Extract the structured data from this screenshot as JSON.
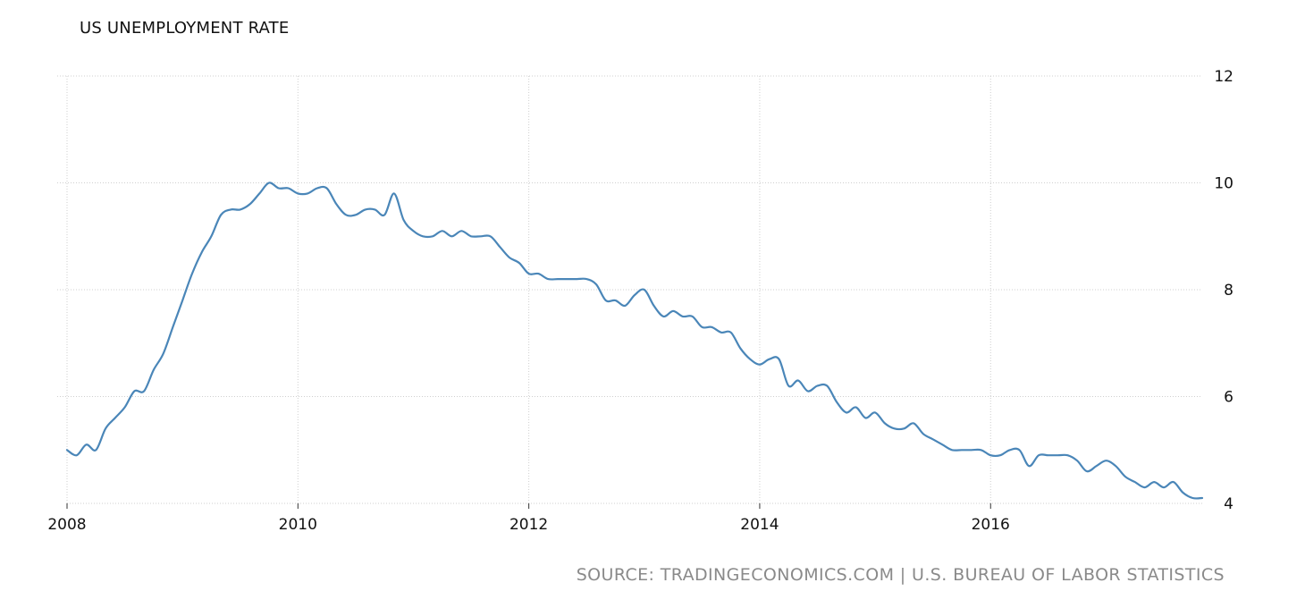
{
  "source": "SOURCE: TRADINGECONOMICS.COM | U.S. BUREAU OF LABOR STATISTICS",
  "colors": {
    "line": "#4a86b8",
    "grid": "#cfcfcf",
    "source_text": "#8a8a8a"
  },
  "chart_data": {
    "type": "line",
    "title": "US UNEMPLOYMENT RATE",
    "xlabel": "",
    "ylabel": "",
    "xlim": [
      2008.0,
      2017.833
    ],
    "ylim": [
      4,
      12
    ],
    "x_ticks": [
      2008,
      2010,
      2012,
      2014,
      2016
    ],
    "x_tick_labels": [
      "2008",
      "2010",
      "2012",
      "2014",
      "2016"
    ],
    "y_ticks": [
      4,
      6,
      8,
      10,
      12
    ],
    "y_tick_labels": [
      "4",
      "6",
      "8",
      "10",
      "12"
    ],
    "y_axis_side": "right",
    "grid": true,
    "legend": "none",
    "series": [
      {
        "x": [
          "2008-01",
          "2008-02",
          "2008-03",
          "2008-04",
          "2008-05",
          "2008-06",
          "2008-07",
          "2008-08",
          "2008-09",
          "2008-10",
          "2008-11",
          "2008-12",
          "2009-01",
          "2009-02",
          "2009-03",
          "2009-04",
          "2009-05",
          "2009-06",
          "2009-07",
          "2009-08",
          "2009-09",
          "2009-10",
          "2009-11",
          "2009-12",
          "2010-01",
          "2010-02",
          "2010-03",
          "2010-04",
          "2010-05",
          "2010-06",
          "2010-07",
          "2010-08",
          "2010-09",
          "2010-10",
          "2010-11",
          "2010-12",
          "2011-01",
          "2011-02",
          "2011-03",
          "2011-04",
          "2011-05",
          "2011-06",
          "2011-07",
          "2011-08",
          "2011-09",
          "2011-10",
          "2011-11",
          "2011-12",
          "2012-01",
          "2012-02",
          "2012-03",
          "2012-04",
          "2012-05",
          "2012-06",
          "2012-07",
          "2012-08",
          "2012-09",
          "2012-10",
          "2012-11",
          "2012-12",
          "2013-01",
          "2013-02",
          "2013-03",
          "2013-04",
          "2013-05",
          "2013-06",
          "2013-07",
          "2013-08",
          "2013-09",
          "2013-10",
          "2013-11",
          "2013-12",
          "2014-01",
          "2014-02",
          "2014-03",
          "2014-04",
          "2014-05",
          "2014-06",
          "2014-07",
          "2014-08",
          "2014-09",
          "2014-10",
          "2014-11",
          "2014-12",
          "2015-01",
          "2015-02",
          "2015-03",
          "2015-04",
          "2015-05",
          "2015-06",
          "2015-07",
          "2015-08",
          "2015-09",
          "2015-10",
          "2015-11",
          "2015-12",
          "2016-01",
          "2016-02",
          "2016-03",
          "2016-04",
          "2016-05",
          "2016-06",
          "2016-07",
          "2016-08",
          "2016-09",
          "2016-10",
          "2016-11",
          "2016-12",
          "2017-01",
          "2017-02",
          "2017-03",
          "2017-04",
          "2017-05",
          "2017-06",
          "2017-07",
          "2017-08",
          "2017-09",
          "2017-10",
          "2017-11"
        ],
        "values": [
          5.0,
          4.9,
          5.1,
          5.0,
          5.4,
          5.6,
          5.8,
          6.1,
          6.1,
          6.5,
          6.8,
          7.3,
          7.8,
          8.3,
          8.7,
          9.0,
          9.4,
          9.5,
          9.5,
          9.6,
          9.8,
          10.0,
          9.9,
          9.9,
          9.8,
          9.8,
          9.9,
          9.9,
          9.6,
          9.4,
          9.4,
          9.5,
          9.5,
          9.4,
          9.8,
          9.3,
          9.1,
          9.0,
          9.0,
          9.1,
          9.0,
          9.1,
          9.0,
          9.0,
          9.0,
          8.8,
          8.6,
          8.5,
          8.3,
          8.3,
          8.2,
          8.2,
          8.2,
          8.2,
          8.2,
          8.1,
          7.8,
          7.8,
          7.7,
          7.9,
          8.0,
          7.7,
          7.5,
          7.6,
          7.5,
          7.5,
          7.3,
          7.3,
          7.2,
          7.2,
          6.9,
          6.7,
          6.6,
          6.7,
          6.7,
          6.2,
          6.3,
          6.1,
          6.2,
          6.2,
          5.9,
          5.7,
          5.8,
          5.6,
          5.7,
          5.5,
          5.4,
          5.4,
          5.5,
          5.3,
          5.2,
          5.1,
          5.0,
          5.0,
          5.0,
          5.0,
          4.9,
          4.9,
          5.0,
          5.0,
          4.7,
          4.9,
          4.9,
          4.9,
          4.9,
          4.8,
          4.6,
          4.7,
          4.8,
          4.7,
          4.5,
          4.4,
          4.3,
          4.4,
          4.3,
          4.4,
          4.2,
          4.1,
          4.1
        ]
      }
    ]
  }
}
